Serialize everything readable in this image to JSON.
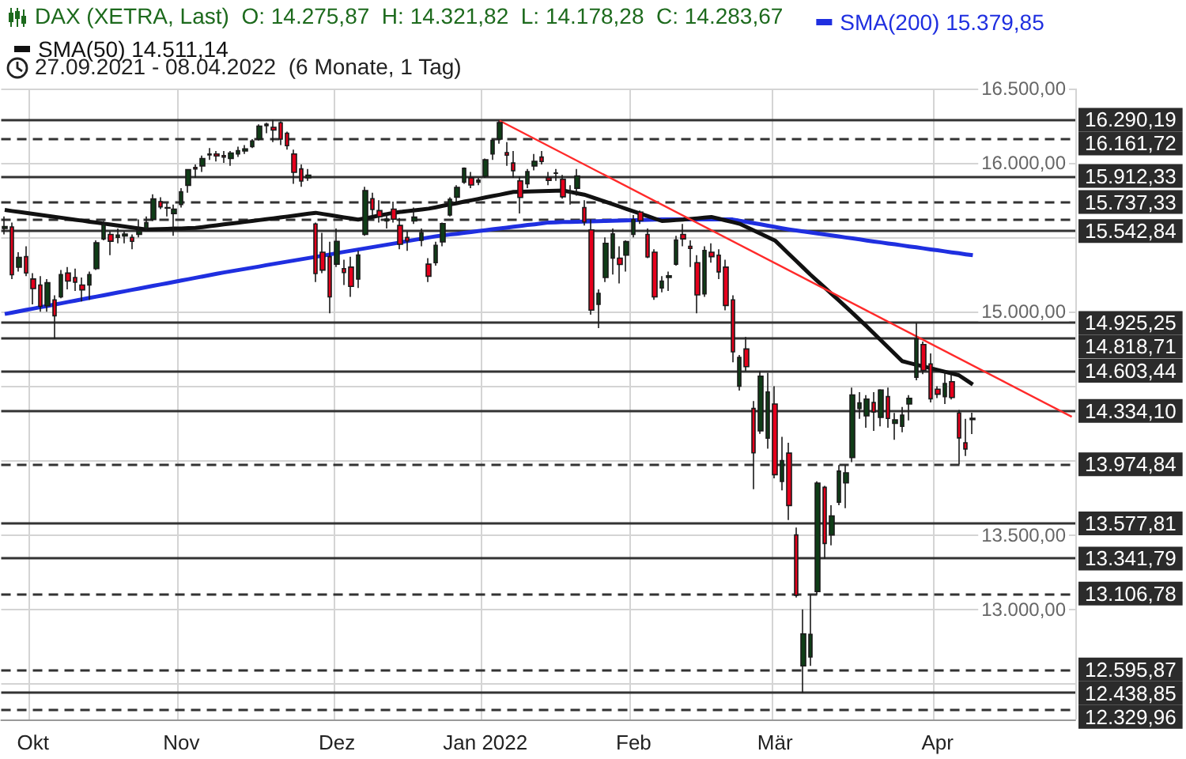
{
  "chart_data": {
    "type": "candlestick",
    "title": "DAX (XETRA, Last)",
    "annotations": [
      "O: 14.275,87",
      "H: 14.321,82",
      "L: 14.178,28",
      "C: 14.283,67",
      "27.09.2021 - 08.04.2022  (6 Monate, 1 Tag)"
    ],
    "categories": [
      null,
      null,
      null,
      null,
      "Okt",
      null,
      null,
      null,
      null,
      null,
      null,
      null,
      null,
      null,
      null,
      null,
      null,
      null,
      null,
      null,
      null,
      null,
      null,
      null,
      null,
      "Nov",
      null,
      null,
      null,
      null,
      null,
      null,
      null,
      null,
      null,
      null,
      null,
      null,
      null,
      null,
      null,
      null,
      null,
      null,
      null,
      null,
      null,
      "Dez",
      null,
      null,
      null,
      null,
      null,
      null,
      null,
      null,
      null,
      null,
      null,
      null,
      null,
      null,
      null,
      null,
      null,
      null,
      null,
      null,
      "Jan 2022",
      null,
      null,
      null,
      null,
      null,
      null,
      null,
      null,
      null,
      null,
      null,
      null,
      null,
      null,
      null,
      null,
      null,
      null,
      null,
      null,
      "Feb",
      null,
      null,
      null,
      null,
      null,
      null,
      null,
      null,
      null,
      null,
      null,
      null,
      null,
      null,
      null,
      null,
      null,
      null,
      null,
      "Mär",
      null,
      null,
      null,
      null,
      null,
      null,
      null,
      null,
      null,
      null,
      null,
      null,
      null,
      null,
      null,
      null,
      null,
      null,
      null,
      null,
      null,
      null,
      "Apr",
      null,
      null,
      null,
      null,
      null,
      null,
      null,
      null,
      null,
      null,
      null,
      null,
      null,
      null,
      null,
      null,
      null,
      null,
      null
    ],
    "ohlc": [
      [
        15560,
        15640,
        15520,
        15573
      ],
      [
        15570,
        15600,
        15220,
        15249
      ],
      [
        15300,
        15400,
        15270,
        15365
      ],
      [
        15370,
        15440,
        15240,
        15261
      ],
      [
        15220,
        15260,
        15050,
        15156
      ],
      [
        15180,
        15240,
        15000,
        15036
      ],
      [
        15040,
        15220,
        15000,
        15195
      ],
      [
        15080,
        15110,
        14818.71,
        14973
      ],
      [
        15100,
        15280,
        15090,
        15250
      ],
      [
        15260,
        15300,
        15150,
        15206
      ],
      [
        15230,
        15290,
        15140,
        15199
      ],
      [
        15180,
        15230,
        15070,
        15147
      ],
      [
        15180,
        15270,
        15080,
        15250
      ],
      [
        15290,
        15480,
        15280,
        15463
      ],
      [
        15490,
        15610,
        15480,
        15587
      ],
      [
        15520,
        15540,
        15380,
        15474
      ],
      [
        15500,
        15560,
        15460,
        15516
      ],
      [
        15510,
        15540,
        15460,
        15522
      ],
      [
        15500,
        15520,
        15420,
        15473
      ],
      [
        15520,
        15620,
        15500,
        15543
      ],
      [
        15560,
        15640,
        15540,
        15599
      ],
      [
        15620,
        15790,
        15610,
        15758
      ],
      [
        15740,
        15770,
        15690,
        15705
      ],
      [
        15700,
        15730,
        15640,
        15696
      ],
      [
        15660,
        15720,
        15510,
        15689
      ],
      [
        15720,
        15830,
        15700,
        15807
      ],
      [
        15850,
        15960,
        15800,
        15955
      ],
      [
        15970,
        15990,
        15900,
        15960
      ],
      [
        15980,
        16050,
        15940,
        16030
      ],
      [
        16060,
        16100,
        16020,
        16054
      ],
      [
        16060,
        16080,
        16010,
        16047
      ],
      [
        16050,
        16080,
        16000,
        16040
      ],
      [
        16030,
        16080,
        15980,
        16067
      ],
      [
        16060,
        16110,
        16040,
        16083
      ],
      [
        16080,
        16120,
        16060,
        16094
      ],
      [
        16110,
        16160,
        16100,
        16148
      ],
      [
        16160,
        16260,
        16150,
        16248
      ],
      [
        16260,
        16270,
        16200,
        16251
      ],
      [
        16240,
        16290.19,
        16140,
        16221
      ],
      [
        16270,
        16280,
        16120,
        16160
      ],
      [
        16200,
        16210,
        16090,
        16116
      ],
      [
        16060,
        16090,
        15860,
        15937
      ],
      [
        15960,
        15990,
        15840,
        15878
      ],
      [
        15900,
        15960,
        15880,
        15918
      ],
      [
        15590,
        15600,
        15200,
        15257
      ],
      [
        15400,
        15530,
        15260,
        15280
      ],
      [
        15370,
        15470,
        14990,
        15100
      ],
      [
        15320,
        15560,
        15300,
        15473
      ],
      [
        15290,
        15350,
        15180,
        15263
      ],
      [
        15300,
        15370,
        15100,
        15170
      ],
      [
        15220,
        15410,
        15160,
        15381
      ],
      [
        15520,
        15840,
        15510,
        15814
      ],
      [
        15760,
        15800,
        15650,
        15687
      ],
      [
        15680,
        15750,
        15600,
        15639
      ],
      [
        15610,
        15660,
        15560,
        15623
      ],
      [
        15690,
        15740,
        15600,
        15622
      ],
      [
        15580,
        15630,
        15420,
        15453
      ],
      [
        15500,
        15540,
        15410,
        15476
      ],
      [
        15610,
        15700,
        15590,
        15636
      ],
      [
        15480,
        15560,
        15440,
        15532
      ],
      [
        15320,
        15360,
        15200,
        15239
      ],
      [
        15330,
        15470,
        15310,
        15447
      ],
      [
        15470,
        15600,
        15440,
        15593
      ],
      [
        15650,
        15770,
        15640,
        15756
      ],
      [
        15770,
        15850,
        15740,
        15835
      ],
      [
        15870,
        15970,
        15860,
        15964
      ],
      [
        15900,
        15940,
        15830,
        15852
      ],
      [
        15870,
        15900,
        15850,
        15885
      ],
      [
        15910,
        16030,
        15900,
        16021
      ],
      [
        16060,
        16160,
        16020,
        16152
      ],
      [
        16160,
        16285,
        16130,
        16271
      ],
      [
        16070,
        16140,
        15980,
        16052
      ],
      [
        16000,
        16080,
        15900,
        15948
      ],
      [
        15880,
        15910,
        15660,
        15768
      ],
      [
        15860,
        15960,
        15830,
        15942
      ],
      [
        15980,
        16060,
        15950,
        16011
      ],
      [
        16040,
        16080,
        15990,
        16010
      ],
      [
        15900,
        15940,
        15850,
        15883
      ],
      [
        15930,
        15960,
        15880,
        15933
      ],
      [
        15890,
        15920,
        15760,
        15773
      ],
      [
        15800,
        15850,
        15720,
        15810
      ],
      [
        15830,
        15960,
        15780,
        15912
      ],
      [
        15700,
        15750,
        15580,
        15603
      ],
      [
        15550,
        15620,
        14980,
        15011
      ],
      [
        15050,
        15150,
        14890,
        15123
      ],
      [
        15230,
        15500,
        15200,
        15460
      ],
      [
        15360,
        15560,
        15250,
        15524
      ],
      [
        15360,
        15440,
        15190,
        15318
      ],
      [
        15380,
        15480,
        15270,
        15471
      ],
      [
        15520,
        15650,
        15500,
        15619
      ],
      [
        15670,
        15680,
        15590,
        15613
      ],
      [
        15520,
        15560,
        15360,
        15368
      ],
      [
        15400,
        15420,
        15080,
        15100
      ],
      [
        15160,
        15240,
        15130,
        15206
      ],
      [
        15230,
        15270,
        15140,
        15242
      ],
      [
        15320,
        15510,
        15310,
        15482
      ],
      [
        15520,
        15590,
        15440,
        15490
      ],
      [
        15440,
        15480,
        15300,
        15425
      ],
      [
        15330,
        15380,
        14990,
        15113
      ],
      [
        15120,
        15440,
        15100,
        15412
      ],
      [
        15400,
        15460,
        15330,
        15370
      ],
      [
        15380,
        15420,
        15220,
        15268
      ],
      [
        15300,
        15350,
        15010,
        15042
      ],
      [
        15080,
        15110,
        14660,
        14731
      ],
      [
        14500,
        14710,
        14470,
        14693
      ],
      [
        14750,
        14830,
        14600,
        14631
      ],
      [
        14350,
        14400,
        13807,
        14052
      ],
      [
        14200,
        14600,
        14180,
        14567
      ],
      [
        14150,
        14590,
        14080,
        14461
      ],
      [
        14380,
        14500,
        13880,
        13905
      ],
      [
        13860,
        14160,
        13800,
        14000
      ],
      [
        14050,
        14120,
        13600,
        13698
      ],
      [
        13500,
        13550,
        13080,
        13095
      ],
      [
        12620,
        13000,
        12438.85,
        12835
      ],
      [
        12680,
        13100,
        12620,
        12832
      ],
      [
        13120,
        13860,
        13100,
        13848
      ],
      [
        13820,
        13830,
        13340,
        13443
      ],
      [
        13500,
        13700,
        13430,
        13628
      ],
      [
        13720,
        13970,
        13700,
        13929
      ],
      [
        13850,
        13970,
        13680,
        13918
      ],
      [
        14020,
        14490,
        13990,
        14441
      ],
      [
        14350,
        14460,
        14280,
        14388
      ],
      [
        14300,
        14440,
        14220,
        14413
      ],
      [
        14390,
        14460,
        14200,
        14326
      ],
      [
        14290,
        14480,
        14230,
        14474
      ],
      [
        14430,
        14490,
        14220,
        14283
      ],
      [
        14250,
        14320,
        14140,
        14274
      ],
      [
        14230,
        14360,
        14190,
        14306
      ],
      [
        14380,
        14440,
        14270,
        14418
      ],
      [
        14560,
        14925.25,
        14540,
        14820
      ],
      [
        14780,
        14800,
        14580,
        14606
      ],
      [
        14650,
        14720,
        14390,
        14415
      ],
      [
        14480,
        14500,
        14420,
        14446
      ],
      [
        14430,
        14600,
        14380,
        14518
      ],
      [
        14530,
        14580,
        14410,
        14424
      ],
      [
        14320,
        14340,
        13975,
        14152
      ],
      [
        14120,
        14280,
        14030,
        14078
      ],
      [
        14275.87,
        14321.82,
        14178.28,
        14283.67
      ],
      null,
      null,
      null,
      null,
      null,
      null,
      null,
      null,
      null,
      null,
      null,
      null,
      null,
      null
    ],
    "colors": [
      "#0f3d17",
      "#e5001c",
      "#0f3d17",
      "#e5001c",
      "#e5001c",
      "#e5001c",
      "#0f3d17",
      "#e5001c",
      "#0f3d17",
      "#e5001c",
      "#e5001c",
      "#e5001c",
      "#0f3d17",
      "#0f3d17",
      "#0f3d17",
      "#e5001c",
      "#0f3d17",
      "#0f3d17",
      "#e5001c",
      "#0f3d17",
      "#0f3d17",
      "#0f3d17",
      "#e5001c",
      "#e5001c",
      "#0f3d17",
      "#0f3d17",
      "#0f3d17",
      "#e5001c",
      "#0f3d17",
      "#e5001c",
      "#e5001c",
      "#e5001c",
      "#0f3d17",
      "#0f3d17",
      "#0f3d17",
      "#0f3d17",
      "#0f3d17",
      "#e5001c",
      "#e5001c",
      "#e5001c",
      "#e5001c",
      "#e5001c",
      "#e5001c",
      "#0f3d17",
      "#e5001c",
      "#e5001c",
      "#e5001c",
      "#0f3d17",
      "#e5001c",
      "#e5001c",
      "#0f3d17",
      "#0f3d17",
      "#e5001c",
      "#e5001c",
      "#0f3d17",
      "#e5001c",
      "#e5001c",
      "#e5001c",
      "#0f3d17",
      "#0f3d17",
      "#e5001c",
      "#0f3d17",
      "#0f3d17",
      "#0f3d17",
      "#0f3d17",
      "#0f3d17",
      "#e5001c",
      "#0f3d17",
      "#0f3d17",
      "#0f3d17",
      "#0f3d17",
      "#e5001c",
      "#e5001c",
      "#e5001c",
      "#0f3d17",
      "#0f3d17",
      "#e5001c",
      "#e5001c",
      "#0f3d17",
      "#e5001c",
      "#0f3d17",
      "#0f3d17",
      "#e5001c",
      "#e5001c",
      "#0f3d17",
      "#0f3d17",
      "#0f3d17",
      "#e5001c",
      "#0f3d17",
      "#0f3d17",
      "#e5001c",
      "#e5001c",
      "#e5001c",
      "#0f3d17",
      "#0f3d17",
      "#0f3d17",
      "#e5001c",
      "#e5001c",
      "#e5001c",
      "#0f3d17",
      "#e5001c",
      "#e5001c",
      "#e5001c",
      "#e5001c",
      "#0f3d17",
      "#e5001c",
      "#e5001c",
      "#0f3d17",
      "#0f3d17",
      "#e5001c",
      "#0f3d17",
      "#e5001c",
      "#e5001c",
      "#0f3d17",
      "#0f3d17",
      "#0f3d17",
      "#e5001c",
      "#0f3d17",
      "#0f3d17",
      "#0f3d17",
      "#0f3d17",
      "#0f3d17",
      "#0f3d17",
      "#e5001c",
      "#0f3d17",
      "#e5001c",
      "#0f3d17",
      "#0f3d17",
      "#0f3d17",
      "#0f3d17",
      "#e5001c",
      "#e5001c",
      "#e5001c",
      "#0f3d17",
      "#e5001c",
      "#e5001c",
      "#e5001c",
      "#0f3d17",
      null,
      null,
      null,
      null,
      null,
      null,
      null,
      null,
      null,
      null,
      null,
      null,
      null,
      null
    ],
    "series": [
      {
        "type": "line",
        "name": "SMA(200) 15.379,85",
        "color": "#1f2fe0",
        "values": [
          14985,
          14994,
          15003,
          15012,
          15021,
          15030,
          15039,
          15048,
          15057,
          15066,
          15075,
          15084,
          15093,
          15102,
          15111,
          15120,
          15129,
          15138,
          15147,
          15156,
          15165,
          15174,
          15183,
          15192,
          15201,
          15210,
          15219,
          15228,
          15237,
          15246,
          15255,
          15264,
          15272,
          15280,
          15288,
          15296,
          15304,
          15313,
          15321,
          15329,
          15337,
          15345,
          15353,
          15361,
          15369,
          15377,
          15385,
          15394,
          15402,
          15410,
          15418,
          15426,
          15434,
          15442,
          15450,
          15458,
          15466,
          15475,
          15483,
          15491,
          15499,
          15507,
          15513,
          15519,
          15524,
          15530,
          15536,
          15542,
          15548,
          15554,
          15559,
          15565,
          15571,
          15577,
          15583,
          15588,
          15594,
          15600,
          15601,
          15603,
          15604,
          15605,
          15606,
          15608,
          15609,
          15610,
          15611,
          15613,
          15614,
          15615,
          15616,
          15618,
          15619,
          15620,
          15620,
          15620,
          15620,
          15620,
          15620,
          15620,
          15620,
          15620,
          15620,
          15620,
          15612,
          15603,
          15595,
          15587,
          15578,
          15570,
          15561,
          15553,
          15546,
          15540,
          15533,
          15526,
          15520,
          15513,
          15506,
          15499,
          15493,
          15486,
          15479,
          15472,
          15466,
          15459,
          15453,
          15446,
          15439,
          15433,
          15426,
          15419,
          15413,
          15406,
          15399,
          15393,
          15386,
          15379.85,
          null,
          null,
          null,
          null,
          null,
          null,
          null,
          null,
          null,
          null,
          null,
          null,
          null,
          null
        ]
      },
      {
        "type": "line",
        "name": "SMA(50) 14.511,14",
        "color": "#111111",
        "values": [
          15684,
          15677,
          15671,
          15664,
          15658,
          15651,
          15645,
          15638,
          15632,
          15625,
          15618,
          15612,
          15605,
          15599,
          15592,
          15586,
          15579,
          15573,
          15566,
          15560,
          15553,
          15554,
          15556,
          15557,
          15559,
          15560,
          15562,
          15563,
          15569,
          15575,
          15581,
          15587,
          15593,
          15598,
          15604,
          15610,
          15616,
          15622,
          15628,
          15634,
          15640,
          15646,
          15653,
          15659,
          15665,
          15657,
          15650,
          15642,
          15634,
          15627,
          15619,
          15628,
          15637,
          15647,
          15656,
          15665,
          15671,
          15676,
          15682,
          15687,
          15693,
          15702,
          15712,
          15721,
          15730,
          15740,
          15749,
          15758,
          15768,
          15777,
          15786,
          15796,
          15805,
          15806,
          15808,
          15809,
          15810,
          15812,
          15813,
          15815,
          15806,
          15796,
          15787,
          15771,
          15755,
          15739,
          15723,
          15707,
          15691,
          15675,
          15659,
          15643,
          15626,
          15610,
          15613,
          15616,
          15619,
          15624,
          15628,
          15633,
          15637,
          15626,
          15614,
          15603,
          15591,
          15569,
          15546,
          15524,
          15501,
          15479,
          15433,
          15387,
          15342,
          15296,
          15250,
          15207,
          15164,
          15121,
          15078,
          15034,
          14990,
          14945,
          14901,
          14854,
          14808,
          14761,
          14715,
          14668,
          14656,
          14644,
          14633,
          14621,
          14609,
          14597,
          14586,
          14574,
          14543,
          14511.14,
          null,
          null,
          null,
          null,
          null,
          null,
          null,
          null,
          null,
          null,
          null,
          null,
          null,
          null
        ]
      },
      {
        "type": "line",
        "color": "#ff2a2a",
        "values": [
          null,
          null,
          null,
          null,
          null,
          null,
          null,
          null,
          null,
          null,
          null,
          null,
          null,
          null,
          null,
          null,
          null,
          null,
          null,
          null,
          null,
          null,
          null,
          null,
          null,
          null,
          null,
          null,
          null,
          null,
          null,
          null,
          null,
          null,
          null,
          null,
          null,
          null,
          null,
          null,
          null,
          null,
          null,
          null,
          null,
          null,
          null,
          null,
          null,
          null,
          null,
          null,
          null,
          null,
          null,
          null,
          null,
          null,
          null,
          null,
          null,
          null,
          null,
          null,
          null,
          null,
          null,
          null,
          null,
          null,
          16285,
          null,
          null,
          null,
          null,
          null,
          null,
          null,
          null,
          null,
          null,
          null,
          null,
          null,
          null,
          null,
          null,
          null,
          null,
          null,
          null,
          null,
          null,
          null,
          null,
          null,
          null,
          null,
          null,
          null,
          null,
          null,
          null,
          null,
          null,
          null,
          null,
          null,
          null,
          null,
          null,
          null,
          null,
          null,
          null,
          null,
          null,
          null,
          null,
          null,
          null,
          null,
          null,
          null,
          null,
          null,
          null,
          null,
          null,
          null,
          null,
          null,
          null,
          null,
          null,
          null,
          null,
          null,
          null,
          null,
          null,
          null,
          null,
          null,
          null,
          null,
          null,
          null,
          null,
          null,
          null,
          14294
        ]
      }
    ],
    "ylim": [
      12260,
      16500
    ],
    "yticks": [
      {
        "value": 12500,
        "label": null
      },
      {
        "value": 13000,
        "label": "13.000,00"
      },
      {
        "value": 13500,
        "label": "13.500,00"
      },
      {
        "value": 14000,
        "label": null
      },
      {
        "value": 14500,
        "label": null
      },
      {
        "value": 15000,
        "label": "15.000,00"
      },
      {
        "value": 15500,
        "label": null
      },
      {
        "value": 16000,
        "label": "16.000,00"
      },
      {
        "value": 16500,
        "label": "16.500,00"
      }
    ],
    "ref_lines": [
      {
        "axis": "y",
        "value": 16290.19,
        "label": "16.290,19",
        "line_style": "solid"
      },
      {
        "axis": "y",
        "value": 16161.72,
        "label": "16.161,72",
        "line_style": "dashed"
      },
      {
        "axis": "y",
        "value": 15912.33,
        "label": "15.912,33",
        "line_style": "solid"
      },
      {
        "axis": "y",
        "value": 15737.33,
        "label": "15.737,33",
        "line_style": "dashed"
      },
      {
        "axis": "y",
        "value": 15620,
        "label": null,
        "line_style": "dashed"
      },
      {
        "axis": "y",
        "value": 15542.84,
        "label": "15.542,84",
        "line_style": "solid"
      },
      {
        "axis": "y",
        "value": 14925.25,
        "label": "14.925,25",
        "line_style": "solid"
      },
      {
        "axis": "y",
        "value": 14818.71,
        "label": "14.818,71",
        "line_style": "solid"
      },
      {
        "axis": "y",
        "value": 14603.44,
        "label": "14.603,44",
        "line_style": "solid"
      },
      {
        "axis": "y",
        "value": 14334.1,
        "label": "14.334,10",
        "line_style": "solid"
      },
      {
        "axis": "y",
        "value": 13974.84,
        "label": "13.974,84",
        "line_style": "dashed"
      },
      {
        "axis": "y",
        "value": 13577.81,
        "label": "13.577,81",
        "line_style": "solid"
      },
      {
        "axis": "y",
        "value": 13341.79,
        "label": "13.341,79",
        "line_style": "solid"
      },
      {
        "axis": "y",
        "value": 13106.78,
        "label": "13.106,78",
        "line_style": "dashed"
      },
      {
        "axis": "y",
        "value": 12595.87,
        "label": "12.595,87",
        "line_style": "dashed"
      },
      {
        "axis": "y",
        "value": 12438.85,
        "label": "12.438,85",
        "line_style": "solid"
      },
      {
        "axis": "y",
        "value": 12329.96,
        "label": "12.329,96",
        "line_style": "dashed"
      }
    ],
    "grid": true,
    "legend": "top left"
  }
}
